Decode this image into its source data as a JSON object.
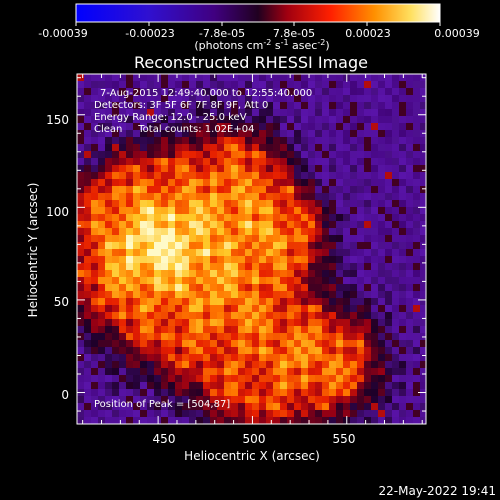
{
  "colorbar": {
    "ticks": [
      "-0.00039",
      "-0.00023",
      "-7.8e-05",
      "7.8e-05",
      "0.00023",
      "0.00039"
    ],
    "unit_main": "(photons cm",
    "unit_sup1": "-2",
    "unit_mid": " s",
    "unit_sup2": "-1",
    "unit_tail": " asec",
    "unit_sup3": "-2",
    "unit_close": ")"
  },
  "image": {
    "title": "Reconstructed RHESSI Image",
    "info_lines": [
      "7-Aug-2015 12:49:40.000 to 12:55:40.000",
      "Detectors: 3F 5F 6F 7F 8F 9F, Att 0",
      "Energy Range: 12.0 - 25.0 keV",
      "Clean     Total counts: 1.02E+04"
    ],
    "peak_label": "Position of Peak = [504,87]"
  },
  "chart_data": {
    "type": "heatmap",
    "title": "Reconstructed RHESSI Image",
    "xlabel": "Heliocentric X (arcsec)",
    "ylabel": "Heliocentric Y (arcsec)",
    "xlim": [
      407,
      592
    ],
    "ylim": [
      -17,
      172
    ],
    "xticks": [
      450,
      500,
      550
    ],
    "yticks": [
      0,
      50,
      100,
      150
    ],
    "zlim": [
      -0.00039,
      0.00039
    ],
    "colormap": "blue-purple-red-yellow-white",
    "peak_position": [
      504,
      87
    ]
  },
  "footer": {
    "date": "22-May-2022 19:41"
  }
}
